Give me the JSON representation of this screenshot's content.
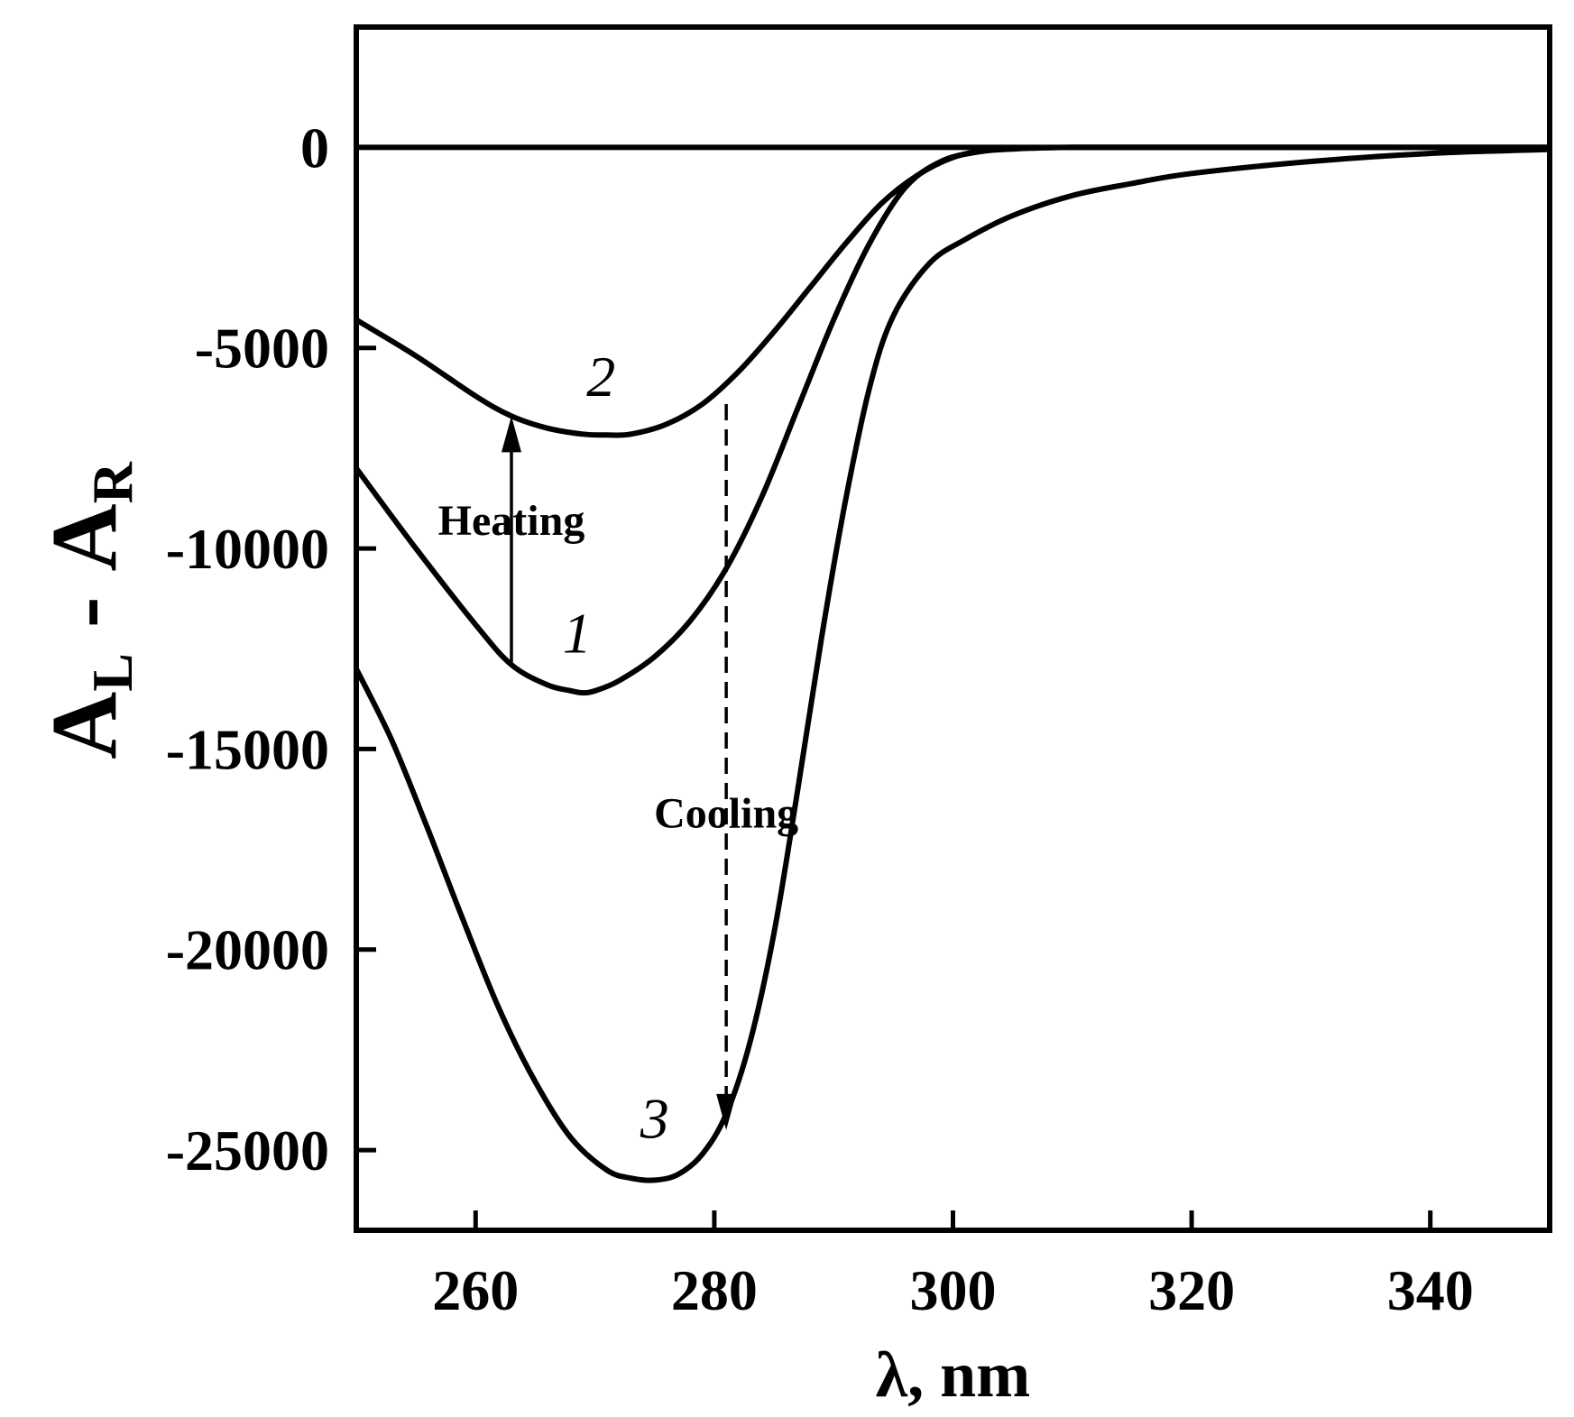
{
  "chart_data": {
    "type": "line",
    "title": "",
    "xlabel": "λ, nm",
    "ylabel_main": "A",
    "ylabel_sub_left": "L",
    "ylabel_dash": "-",
    "ylabel_sub_right": "R",
    "xlim": [
      250,
      350
    ],
    "ylim": [
      -27000,
      3000
    ],
    "x_ticks": [
      260,
      280,
      300,
      320,
      340
    ],
    "y_ticks": [
      0,
      -5000,
      -10000,
      -15000,
      -20000,
      -25000
    ],
    "x_tick_labels": [
      "260",
      "280",
      "300",
      "320",
      "340"
    ],
    "y_tick_labels": [
      "0",
      "-5000",
      "-10000",
      "-15000",
      "-20000",
      "-25000"
    ],
    "grid": false,
    "series": [
      {
        "name": "1",
        "x": [
          250,
          255,
          260,
          263,
          266,
          268,
          269,
          270,
          272,
          275,
          278,
          281,
          284,
          287,
          290,
          293,
          296,
          299,
          302,
          305,
          310,
          320,
          330,
          340,
          350
        ],
        "y": [
          -8000,
          -10000,
          -11900,
          -12900,
          -13400,
          -13550,
          -13600,
          -13550,
          -13300,
          -12700,
          -11800,
          -10500,
          -8700,
          -6500,
          -4300,
          -2400,
          -1000,
          -350,
          -120,
          -40,
          0,
          0,
          0,
          0,
          0
        ]
      },
      {
        "name": "2",
        "x": [
          250,
          255,
          260,
          263,
          266,
          269,
          271,
          273,
          276,
          279,
          282,
          285,
          288,
          291,
          294,
          297,
          300,
          303,
          306,
          310,
          320,
          330,
          340,
          350
        ],
        "y": [
          -4300,
          -5200,
          -6200,
          -6700,
          -7000,
          -7150,
          -7170,
          -7150,
          -6900,
          -6400,
          -5600,
          -4600,
          -3500,
          -2400,
          -1400,
          -700,
          -250,
          -60,
          -10,
          0,
          0,
          0,
          0,
          0
        ]
      },
      {
        "name": "3",
        "x": [
          250,
          253,
          256,
          259,
          262,
          265,
          268,
          271,
          273,
          275,
          277,
          279,
          281,
          283,
          285,
          287,
          289,
          291,
          293,
          295,
          298,
          301,
          305,
          310,
          315,
          320,
          330,
          340,
          350
        ],
        "y": [
          -13000,
          -14800,
          -17000,
          -19300,
          -21500,
          -23300,
          -24700,
          -25500,
          -25700,
          -25750,
          -25600,
          -25100,
          -24100,
          -22300,
          -19600,
          -16000,
          -12200,
          -8800,
          -6000,
          -4200,
          -2900,
          -2300,
          -1700,
          -1200,
          -900,
          -650,
          -350,
          -150,
          -50
        ]
      }
    ],
    "reference_line": {
      "y": 0
    },
    "annotations": [
      {
        "text": "Heating",
        "arrow": "solid",
        "x": 263,
        "y_from": -12900,
        "y_to": -6700,
        "direction": "up"
      },
      {
        "text": "Cooling",
        "arrow": "dashed",
        "x": 281,
        "y_from": -6400,
        "y_to": -24500,
        "direction": "down"
      }
    ],
    "curve_labels": [
      {
        "text": "1",
        "x": 268.5,
        "y": -12600
      },
      {
        "text": "2",
        "x": 270.5,
        "y": -6200
      },
      {
        "text": "3",
        "x": 275,
        "y": -24700
      }
    ]
  }
}
